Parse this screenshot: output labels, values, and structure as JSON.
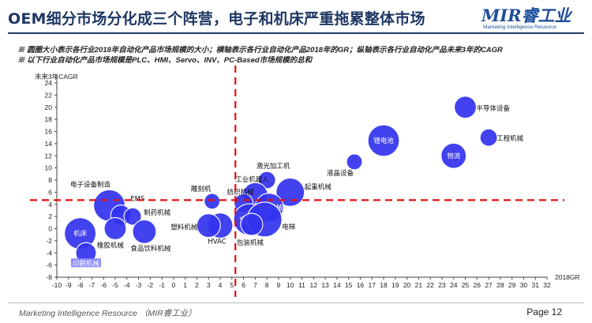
{
  "header": {
    "title": "OEM细分市场分化成三个阵营，电子和机床严重拖累整体市场",
    "logo_main": "MIR睿工业",
    "logo_sub": "Marketing Intelligence Resource"
  },
  "notes": [
    "※ 圆圈大小表示各行业2018年自动化产品市场规模的大小；横轴表示各行业自动化产品2018年的GR；纵轴表示各行业自动化产品未来3年的CAGR",
    "※ 以下行业自动化产品市场规模是PLC、HMI、Servo、INV、PC-Based市场规模的总和"
  ],
  "footer": {
    "source": "Marketing Intelligence Resource （MIR睿工业）",
    "page": "Page 12"
  },
  "colors": {
    "bubble": "#3333ee",
    "bubble_highlight": "#8a8aff",
    "divider": "#e01010",
    "title": "#1f3864"
  },
  "chart_data": {
    "type": "scatter",
    "title": "",
    "xlabel": "2018GR",
    "ylabel": "未来3年CAGR",
    "xlim": [
      -10,
      32
    ],
    "ylim": [
      -8,
      24
    ],
    "xticks": [
      -10,
      -9,
      -8,
      -7,
      -6,
      -5,
      -4,
      -3,
      -2,
      -1,
      0,
      1,
      2,
      3,
      4,
      5,
      6,
      7,
      8,
      9,
      10,
      11,
      12,
      13,
      14,
      15,
      16,
      17,
      18,
      19,
      20,
      21,
      22,
      23,
      24,
      25,
      26,
      27,
      28,
      29,
      30,
      31,
      32
    ],
    "yticks": [
      -8,
      -6,
      -4,
      -2,
      0,
      2,
      4,
      6,
      8,
      10,
      12,
      14,
      16,
      18,
      20,
      22,
      24
    ],
    "reference_lines": {
      "x": 5.3,
      "y": 4.7
    },
    "points": [
      {
        "name": "半导体设备",
        "x": 25,
        "y": 20,
        "size": 14
      },
      {
        "name": "工程机械",
        "x": 27,
        "y": 15,
        "size": 11
      },
      {
        "name": "锂电池",
        "x": 18,
        "y": 14.5,
        "size": 20,
        "label_inside": true
      },
      {
        "name": "物流",
        "x": 24,
        "y": 12,
        "size": 16,
        "label_inside": true
      },
      {
        "name": "液晶设备",
        "x": 15.5,
        "y": 11,
        "size": 10
      },
      {
        "name": "激光加工机",
        "x": 8,
        "y": 8,
        "size": 11
      },
      {
        "name": "工业机器人",
        "x": 7,
        "y": 5.5,
        "size": 16
      },
      {
        "name": "起重机械",
        "x": 10,
        "y": 6,
        "size": 18
      },
      {
        "name": "纺织机械",
        "x": 6,
        "y": 4.2,
        "size": 12
      },
      {
        "name": "雕刻机",
        "x": 3.3,
        "y": 4.5,
        "size": 10
      },
      {
        "name": "纸巾机械",
        "x": 8.2,
        "y": 3.5,
        "size": 18,
        "label_inside": true
      },
      {
        "name": "空压机",
        "x": 6.5,
        "y": 1.5,
        "size": 20,
        "label_inside": true
      },
      {
        "name": "电梯",
        "x": 7.8,
        "y": 1.5,
        "size": 22
      },
      {
        "name": "HVAC",
        "x": 4,
        "y": 0.5,
        "size": 16
      },
      {
        "name": "包装机械",
        "x": 6.7,
        "y": 0.7,
        "size": 14
      },
      {
        "name": "塑料机械",
        "x": 3,
        "y": 0.5,
        "size": 15
      },
      {
        "name": "电子设备制造",
        "x": -5.5,
        "y": 3.8,
        "size": 20
      },
      {
        "name": "EMS",
        "x": -4.5,
        "y": 2.2,
        "size": 13
      },
      {
        "name": "制药机械",
        "x": -3.5,
        "y": 2,
        "size": 11
      },
      {
        "name": "机床",
        "x": -8,
        "y": -0.8,
        "size": 20,
        "label_inside": true
      },
      {
        "name": "橡胶机械",
        "x": -5,
        "y": 0,
        "size": 14
      },
      {
        "name": "食品饮料机械",
        "x": -2.5,
        "y": -0.5,
        "size": 15
      },
      {
        "name": "印刷机械",
        "x": -7.5,
        "y": -4,
        "size": 13,
        "highlight_label": true
      }
    ]
  }
}
